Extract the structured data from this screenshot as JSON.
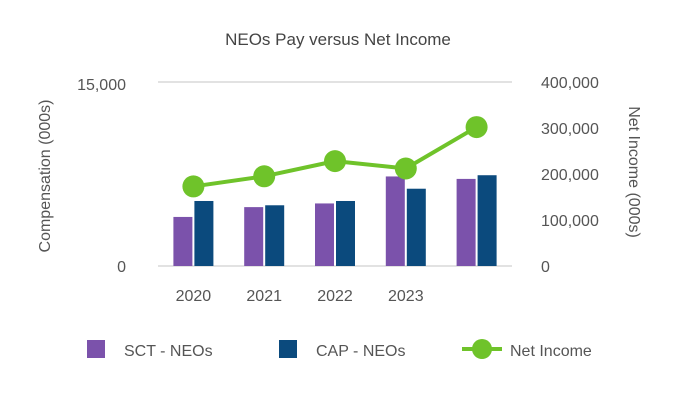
{
  "chart_data": {
    "type": "bar",
    "title": "NEOs Pay versus Net Income",
    "categories": [
      "2020",
      "2021",
      "2022",
      "2023",
      ""
    ],
    "y_left": {
      "label": "Compensation (000s)",
      "range": [
        0,
        15000
      ],
      "ticks": [
        "15,000",
        "0"
      ]
    },
    "y_right": {
      "label": "Net Income (000s)",
      "range": [
        0,
        400000
      ],
      "ticks": [
        "400,000",
        "300,000",
        "200,000",
        "100,000",
        "0"
      ]
    },
    "series": [
      {
        "name": "SCT - NEOs",
        "kind": "bar",
        "axis": "left",
        "color": "#7b52ab",
        "values": [
          4000,
          4800,
          5100,
          7300,
          7100
        ]
      },
      {
        "name": "CAP - NEOs",
        "kind": "bar",
        "axis": "left",
        "color": "#0b4a7d",
        "values": [
          5300,
          4950,
          5300,
          6300,
          7400
        ]
      },
      {
        "name": "Net Income",
        "kind": "line",
        "axis": "right",
        "color": "#6fc32a",
        "values": [
          173000,
          195000,
          228000,
          212000,
          302000
        ]
      }
    ],
    "grid": "horizontal",
    "legend_position": "bottom"
  }
}
